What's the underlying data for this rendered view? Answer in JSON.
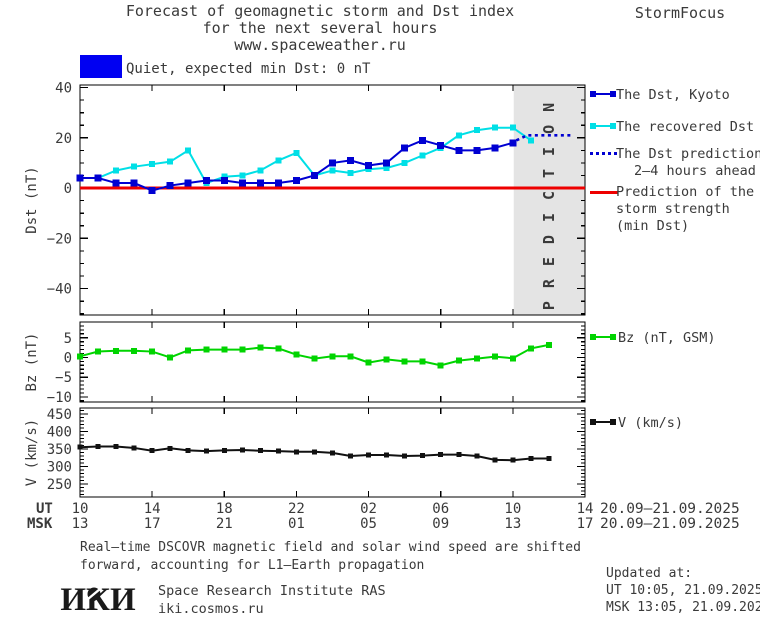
{
  "header": {
    "title_line1": "Forecast of geomagnetic storm and Dst index",
    "title_line2": "for the next several hours",
    "title_line3": "www.spaceweather.ru",
    "brand": "StormFocus"
  },
  "status_banner": {
    "label": "Quiet, expected min Dst: 0 nT",
    "box_color": "#0000f2"
  },
  "legend_dst": {
    "kyoto": {
      "label": "The Dst, Kyoto",
      "color": "#0000d2"
    },
    "recovered": {
      "label": "The recovered Dst",
      "color": "#00dfe6"
    },
    "prediction": {
      "line1": "The Dst prediction",
      "line2": "2–4 hours ahead",
      "color": "#0000d2"
    },
    "storm": {
      "line1": "Prediction of the",
      "line2": "storm strength",
      "line3": "(min Dst)",
      "color": "#ee0000"
    }
  },
  "legend_bz": {
    "label": "Bz (nT, GSM)",
    "color": "#00d400"
  },
  "legend_v": {
    "label": "V (km/s)",
    "color": "#111111"
  },
  "xaxis": {
    "ut_label": "UT",
    "msk_label": "MSK",
    "tick_hours": [
      0,
      4,
      8,
      12,
      16,
      20,
      24,
      28
    ],
    "ut_ticks": [
      "10",
      "14",
      "18",
      "22",
      "02",
      "06",
      "10",
      "14"
    ],
    "msk_ticks": [
      "13",
      "17",
      "21",
      "01",
      "05",
      "09",
      "13",
      "17"
    ],
    "ut_daterange": "20.09–21.09.2025",
    "msk_daterange": "20.09–21.09.2025"
  },
  "chart_data": [
    {
      "name": "dst",
      "type": "line",
      "ylabel": "Dst (nT)",
      "ylim": [
        -50.5,
        41
      ],
      "xlim": [
        0,
        28
      ],
      "yticks": [
        {
          "v": 40,
          "label": "40"
        },
        {
          "v": 20,
          "label": "20"
        },
        {
          "v": 0,
          "label": "0"
        },
        {
          "v": -20,
          "label": "−20"
        },
        {
          "v": -40,
          "label": "−40"
        }
      ],
      "yminor_step": 5,
      "panel": {
        "top": 5,
        "bottom": 235
      },
      "band": {
        "from_hour": 24.05,
        "label": "PREDICTION",
        "fill": "#e4e4e4",
        "text_color": "#c7c7c7"
      },
      "series": [
        {
          "name": "storm-strength-prediction",
          "label": "Prediction of the storm strength (min Dst)",
          "color": "#ee0000",
          "line_width": 3,
          "marker": 0,
          "x": [
            0,
            28
          ],
          "values": [
            0,
            0
          ]
        },
        {
          "name": "recovered-dst",
          "label": "The recovered Dst",
          "color": "#00dfe6",
          "line_width": 2,
          "marker": 6,
          "x": [
            0,
            1,
            2,
            3,
            4,
            5,
            6,
            7,
            8,
            9,
            10,
            11,
            12,
            13,
            14,
            15,
            16,
            17,
            18,
            19,
            20,
            21,
            22,
            23,
            24,
            25
          ],
          "values": [
            4,
            4,
            7,
            8.5,
            9.5,
            10.5,
            15,
            2,
            4.5,
            5,
            7,
            11,
            14,
            5,
            7,
            6,
            7.5,
            8,
            10,
            13,
            16,
            21,
            23,
            24,
            24,
            19
          ]
        },
        {
          "name": "dst-kyoto",
          "label": "The Dst, Kyoto",
          "color": "#0000d2",
          "line_width": 2,
          "marker": 7,
          "x": [
            0,
            1,
            2,
            3,
            4,
            5,
            6,
            7,
            8,
            9,
            10,
            11,
            12,
            13,
            14,
            15,
            16,
            17,
            18,
            19,
            20,
            21,
            22,
            23,
            24
          ],
          "values": [
            4,
            4,
            2,
            2,
            -1,
            1,
            2,
            3,
            3,
            2,
            2,
            2,
            3,
            5,
            10,
            11,
            9,
            10,
            16,
            19,
            17,
            15,
            15,
            16,
            18
          ]
        },
        {
          "name": "dst-prediction",
          "label": "The Dst prediction 2–4 hours ahead",
          "color": "#0000d2",
          "line_width": 2.6,
          "dotted": true,
          "marker": 0,
          "x": [
            24.2,
            24.8,
            27.3
          ],
          "values": [
            19,
            21,
            21
          ]
        }
      ]
    },
    {
      "name": "bz",
      "type": "line",
      "ylabel": "Bz (nT)",
      "ylim": [
        -11.3,
        9
      ],
      "xlim": [
        0,
        28
      ],
      "yticks": [
        {
          "v": 5,
          "label": "5"
        },
        {
          "v": 0,
          "label": "0"
        },
        {
          "v": -5,
          "label": "−5"
        },
        {
          "v": -10,
          "label": "−10"
        }
      ],
      "yminor_step": 1,
      "panel": {
        "top": 242,
        "bottom": 322
      },
      "series": [
        {
          "name": "bz-gsm",
          "label": "Bz (nT, GSM)",
          "color": "#00d400",
          "line_width": 2,
          "marker": 6,
          "x": [
            0,
            1,
            2,
            3,
            4,
            5,
            6,
            7,
            8,
            9,
            10,
            11,
            12,
            13,
            14,
            15,
            16,
            17,
            18,
            19,
            20,
            21,
            22,
            23,
            24,
            25,
            26
          ],
          "values": [
            0.3,
            1.5,
            1.7,
            1.7,
            1.5,
            0,
            1.8,
            2,
            2,
            2,
            2.5,
            2.3,
            0.7,
            -0.3,
            0.3,
            0.3,
            -1.3,
            -0.5,
            -1,
            -1,
            -2,
            -0.8,
            -0.3,
            0.2,
            -0.2,
            2.3,
            3.2
          ]
        }
      ]
    },
    {
      "name": "v",
      "type": "line",
      "ylabel": "V (km/s)",
      "ylim": [
        213,
        467
      ],
      "xlim": [
        0,
        28
      ],
      "yticks": [
        {
          "v": 450,
          "label": "450"
        },
        {
          "v": 400,
          "label": "400"
        },
        {
          "v": 350,
          "label": "350"
        },
        {
          "v": 300,
          "label": "300"
        },
        {
          "v": 250,
          "label": "250"
        }
      ],
      "yminor_step": 10,
      "panel": {
        "top": 328,
        "bottom": 417
      },
      "series": [
        {
          "name": "solar-wind-speed",
          "label": "V (km/s)",
          "color": "#111111",
          "line_width": 2,
          "marker": 5,
          "x": [
            0,
            1,
            2,
            3,
            4,
            5,
            6,
            7,
            8,
            9,
            10,
            11,
            12,
            13,
            14,
            15,
            16,
            17,
            18,
            19,
            20,
            21,
            22,
            23,
            24,
            25,
            26
          ],
          "values": [
            355,
            357,
            357,
            353,
            345,
            352,
            346,
            344,
            346,
            347,
            345,
            344,
            342,
            342,
            339,
            330,
            333,
            333,
            330,
            331,
            334,
            334,
            330,
            319,
            318,
            323,
            323
          ]
        }
      ]
    }
  ],
  "footnote": {
    "line1": "Real–time DSCOVR magnetic field and solar wind speed are shifted",
    "line2": "forward, accounting for L1–Earth propagation"
  },
  "updated": {
    "title": "Updated at:",
    "ut": "UT  10:05, 21.09.2025",
    "msk": "MSK 13:05, 21.09.2025"
  },
  "footer": {
    "logo": "ИКИ",
    "org": "Space Research Institute RAS",
    "site": "iki.cosmos.ru"
  }
}
